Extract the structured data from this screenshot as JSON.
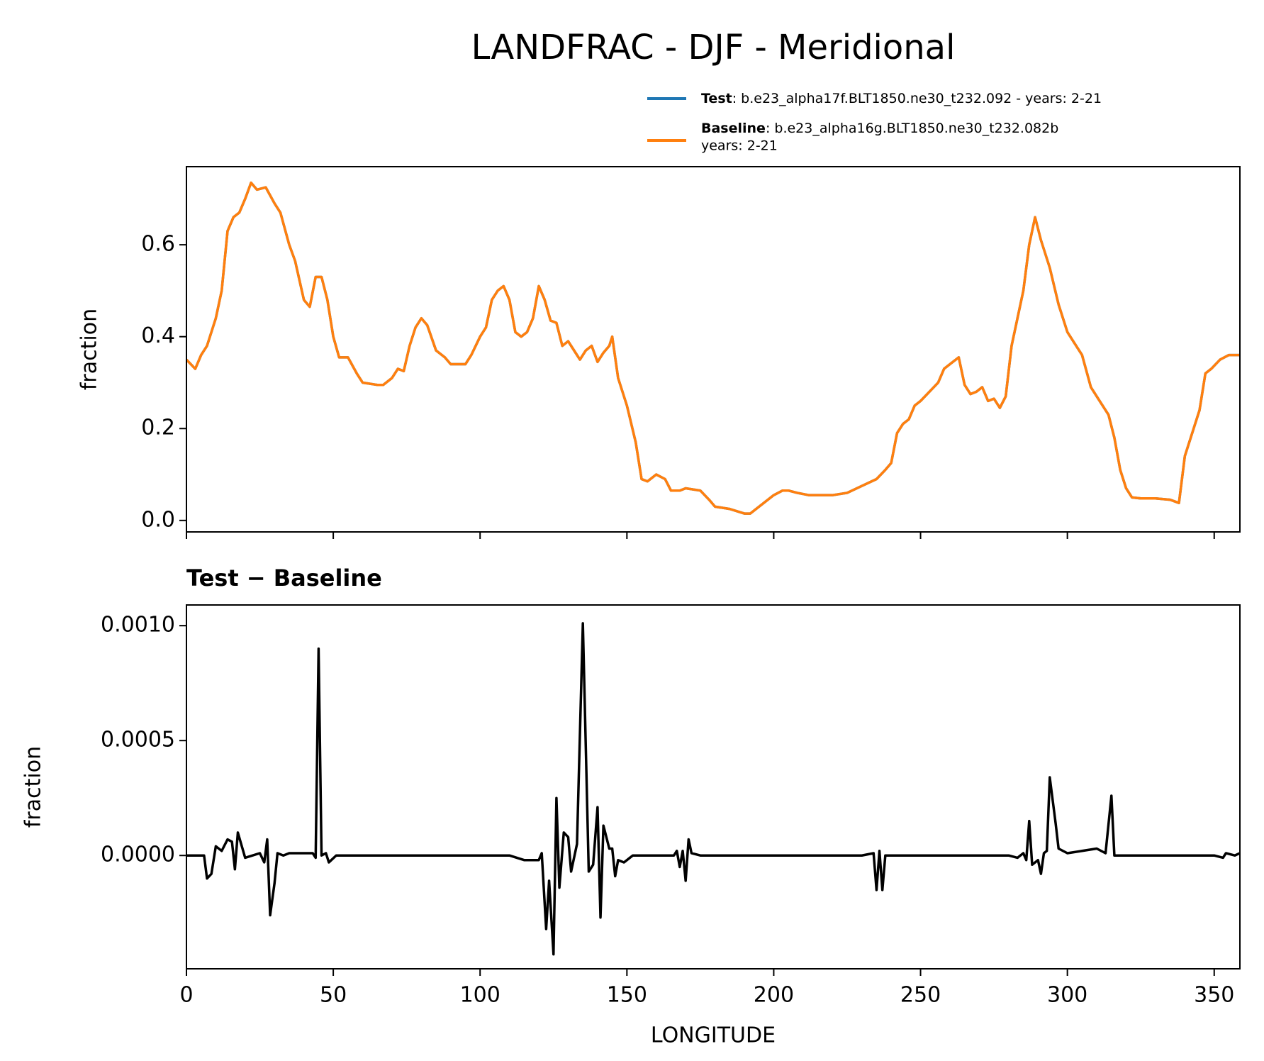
{
  "chart_data": [
    {
      "type": "line",
      "title": "LANDFRAC - DJF - Meridional",
      "ylabel": "fraction",
      "xlim": [
        0,
        358.75
      ],
      "ylim": [
        -0.025,
        0.77
      ],
      "xticks": [
        0,
        50,
        100,
        150,
        200,
        250,
        300,
        350
      ],
      "show_xtick_labels": false,
      "yticks": [
        {
          "value": 0,
          "label": "0.0"
        },
        {
          "value": 0.2,
          "label": "0.2"
        },
        {
          "value": 0.4,
          "label": "0.4"
        },
        {
          "value": 0.6,
          "label": "0.6"
        }
      ],
      "x": [
        0,
        3,
        5,
        7,
        10,
        12,
        14,
        16,
        18,
        20,
        22,
        24,
        27,
        30,
        32,
        35,
        37,
        40,
        42,
        44,
        46,
        48,
        50,
        52,
        55,
        58,
        60,
        65,
        67,
        70,
        72,
        74,
        76,
        78,
        80,
        82,
        85,
        88,
        90,
        95,
        97,
        100,
        102,
        104,
        106,
        108,
        110,
        112,
        114,
        116,
        118,
        120,
        122,
        124,
        126,
        128,
        130,
        132,
        134,
        136,
        138,
        140,
        142,
        144,
        145,
        147,
        150,
        153,
        155,
        157,
        160,
        163,
        165,
        168,
        170,
        175,
        178,
        180,
        185,
        190,
        192,
        195,
        200,
        203,
        205,
        208,
        212,
        220,
        225,
        230,
        235,
        238,
        240,
        242,
        244,
        246,
        248,
        250,
        253,
        256,
        258,
        260,
        263,
        265,
        267,
        269,
        271,
        273,
        275,
        277,
        279,
        281,
        283,
        285,
        287,
        289,
        291,
        294,
        297,
        300,
        302,
        305,
        308,
        311,
        314,
        316,
        318,
        320,
        322,
        325,
        330,
        335,
        338,
        340,
        343,
        345,
        347,
        349,
        352,
        355,
        358.75
      ],
      "legend": "upper right",
      "series": [
        {
          "name": "Test",
          "label": ": b.e23_alpha17f.BLT1850.ne30_t232.092 - years: 2-21",
          "color": "#1f77b4",
          "values": [
            0.35,
            0.33,
            0.36,
            0.38,
            0.44,
            0.5,
            0.63,
            0.66,
            0.67,
            0.7,
            0.735,
            0.72,
            0.725,
            0.69,
            0.67,
            0.6,
            0.565,
            0.48,
            0.465,
            0.53,
            0.53,
            0.48,
            0.4,
            0.355,
            0.355,
            0.32,
            0.3,
            0.295,
            0.295,
            0.31,
            0.33,
            0.325,
            0.38,
            0.42,
            0.44,
            0.425,
            0.37,
            0.355,
            0.34,
            0.34,
            0.36,
            0.4,
            0.42,
            0.48,
            0.5,
            0.51,
            0.48,
            0.41,
            0.4,
            0.41,
            0.44,
            0.51,
            0.48,
            0.435,
            0.43,
            0.38,
            0.39,
            0.37,
            0.35,
            0.37,
            0.38,
            0.345,
            0.365,
            0.38,
            0.4,
            0.31,
            0.25,
            0.17,
            0.09,
            0.085,
            0.1,
            0.09,
            0.065,
            0.065,
            0.07,
            0.065,
            0.045,
            0.03,
            0.025,
            0.015,
            0.015,
            0.03,
            0.055,
            0.065,
            0.065,
            0.06,
            0.055,
            0.055,
            0.06,
            0.075,
            0.09,
            0.11,
            0.125,
            0.19,
            0.21,
            0.22,
            0.25,
            0.26,
            0.28,
            0.3,
            0.33,
            0.34,
            0.355,
            0.295,
            0.275,
            0.28,
            0.29,
            0.26,
            0.265,
            0.245,
            0.27,
            0.38,
            0.44,
            0.5,
            0.6,
            0.66,
            0.61,
            0.55,
            0.47,
            0.41,
            0.39,
            0.36,
            0.29,
            0.26,
            0.23,
            0.18,
            0.11,
            0.07,
            0.05,
            0.048,
            0.048,
            0.045,
            0.038,
            0.14,
            0.2,
            0.24,
            0.32,
            0.33,
            0.35,
            0.36,
            0.36
          ]
        },
        {
          "name": "Baseline",
          "label": [
            ": b.e23_alpha16g.BLT1850.ne30_t232.082b",
            "years: 2-21"
          ],
          "color": "#ff7f0e",
          "values": [
            0.35,
            0.33,
            0.36,
            0.38,
            0.44,
            0.5,
            0.63,
            0.66,
            0.67,
            0.7,
            0.735,
            0.72,
            0.725,
            0.69,
            0.67,
            0.6,
            0.565,
            0.48,
            0.465,
            0.53,
            0.53,
            0.48,
            0.4,
            0.355,
            0.355,
            0.32,
            0.3,
            0.295,
            0.295,
            0.31,
            0.33,
            0.325,
            0.38,
            0.42,
            0.44,
            0.425,
            0.37,
            0.355,
            0.34,
            0.34,
            0.36,
            0.4,
            0.42,
            0.48,
            0.5,
            0.51,
            0.48,
            0.41,
            0.4,
            0.41,
            0.44,
            0.51,
            0.48,
            0.435,
            0.43,
            0.38,
            0.39,
            0.37,
            0.35,
            0.37,
            0.38,
            0.345,
            0.365,
            0.38,
            0.4,
            0.31,
            0.25,
            0.17,
            0.09,
            0.085,
            0.1,
            0.09,
            0.065,
            0.065,
            0.07,
            0.065,
            0.045,
            0.03,
            0.025,
            0.015,
            0.015,
            0.03,
            0.055,
            0.065,
            0.065,
            0.06,
            0.055,
            0.055,
            0.06,
            0.075,
            0.09,
            0.11,
            0.125,
            0.19,
            0.21,
            0.22,
            0.25,
            0.26,
            0.28,
            0.3,
            0.33,
            0.34,
            0.355,
            0.295,
            0.275,
            0.28,
            0.29,
            0.26,
            0.265,
            0.245,
            0.27,
            0.38,
            0.44,
            0.5,
            0.6,
            0.66,
            0.61,
            0.55,
            0.47,
            0.41,
            0.39,
            0.36,
            0.29,
            0.26,
            0.23,
            0.18,
            0.11,
            0.07,
            0.05,
            0.048,
            0.048,
            0.045,
            0.038,
            0.14,
            0.2,
            0.24,
            0.32,
            0.33,
            0.35,
            0.36,
            0.36
          ]
        }
      ]
    },
    {
      "type": "line",
      "title": "Test − Baseline",
      "xlabel": "LONGITUDE",
      "ylabel": "fraction",
      "xlim": [
        0,
        358.75
      ],
      "ylim": [
        -0.000493,
        0.00109
      ],
      "xticks": [
        0,
        50,
        100,
        150,
        200,
        250,
        300,
        350
      ],
      "show_xtick_labels": true,
      "yticks": [
        {
          "value": 0,
          "label": "0.0000"
        },
        {
          "value": 0.0005,
          "label": "0.0005"
        },
        {
          "value": 0.001,
          "label": "0.0010"
        }
      ],
      "x": [
        0,
        6,
        7,
        8.5,
        10,
        12,
        14,
        15.5,
        16.5,
        17.5,
        20,
        25,
        26.5,
        27.5,
        28.5,
        30,
        31,
        33,
        35,
        40,
        43,
        44,
        45,
        46,
        47.5,
        48.5,
        51,
        60,
        90,
        110,
        115,
        118,
        120,
        121,
        122.5,
        123.5,
        125,
        126,
        127,
        128.5,
        130,
        131,
        133,
        135,
        137,
        138.5,
        140,
        141,
        142,
        144,
        145,
        146,
        147,
        149,
        152,
        160,
        166,
        167,
        168,
        169,
        170,
        171,
        172,
        175,
        230,
        234,
        235,
        236,
        237,
        238,
        250,
        280,
        283,
        285,
        286,
        287,
        288,
        290,
        291,
        292,
        293,
        294,
        296,
        297,
        300,
        305,
        310,
        313,
        315,
        316,
        320,
        330,
        345,
        350,
        353,
        354,
        357,
        358.75
      ],
      "series": [
        {
          "color": "#000000",
          "values": [
            0,
            0,
            -0.0001,
            -8e-05,
            4e-05,
            2e-05,
            7e-05,
            6e-05,
            -6e-05,
            0.0001,
            -1e-05,
            1e-05,
            -3e-05,
            7e-05,
            -0.00026,
            -0.00012,
            1e-05,
            0,
            1e-05,
            1e-05,
            1e-05,
            -1e-05,
            0.0009,
            0,
            1e-05,
            -3e-05,
            0,
            0,
            0,
            0,
            -2e-05,
            -2e-05,
            -2e-05,
            1e-05,
            -0.00032,
            -0.00011,
            -0.00043,
            0.00025,
            -0.00014,
            0.0001,
            8e-05,
            -7e-05,
            5e-05,
            0.00101,
            -7e-05,
            -4e-05,
            0.00021,
            -0.00027,
            0.00013,
            3e-05,
            3e-05,
            -9e-05,
            -2e-05,
            -3e-05,
            0,
            0,
            0,
            2e-05,
            -5e-05,
            2e-05,
            -0.00011,
            7e-05,
            1e-05,
            0,
            0,
            1e-05,
            -0.00015,
            2e-05,
            -0.00015,
            0,
            0,
            0,
            -1e-05,
            1e-05,
            -2e-05,
            0.00015,
            -4e-05,
            -2e-05,
            -8e-05,
            1e-05,
            2e-05,
            0.00034,
            0.00014,
            3e-05,
            1e-05,
            2e-05,
            3e-05,
            1e-05,
            0.00026,
            0,
            0,
            0,
            0,
            0,
            -1e-05,
            1e-05,
            0,
            1e-05
          ]
        }
      ]
    }
  ]
}
